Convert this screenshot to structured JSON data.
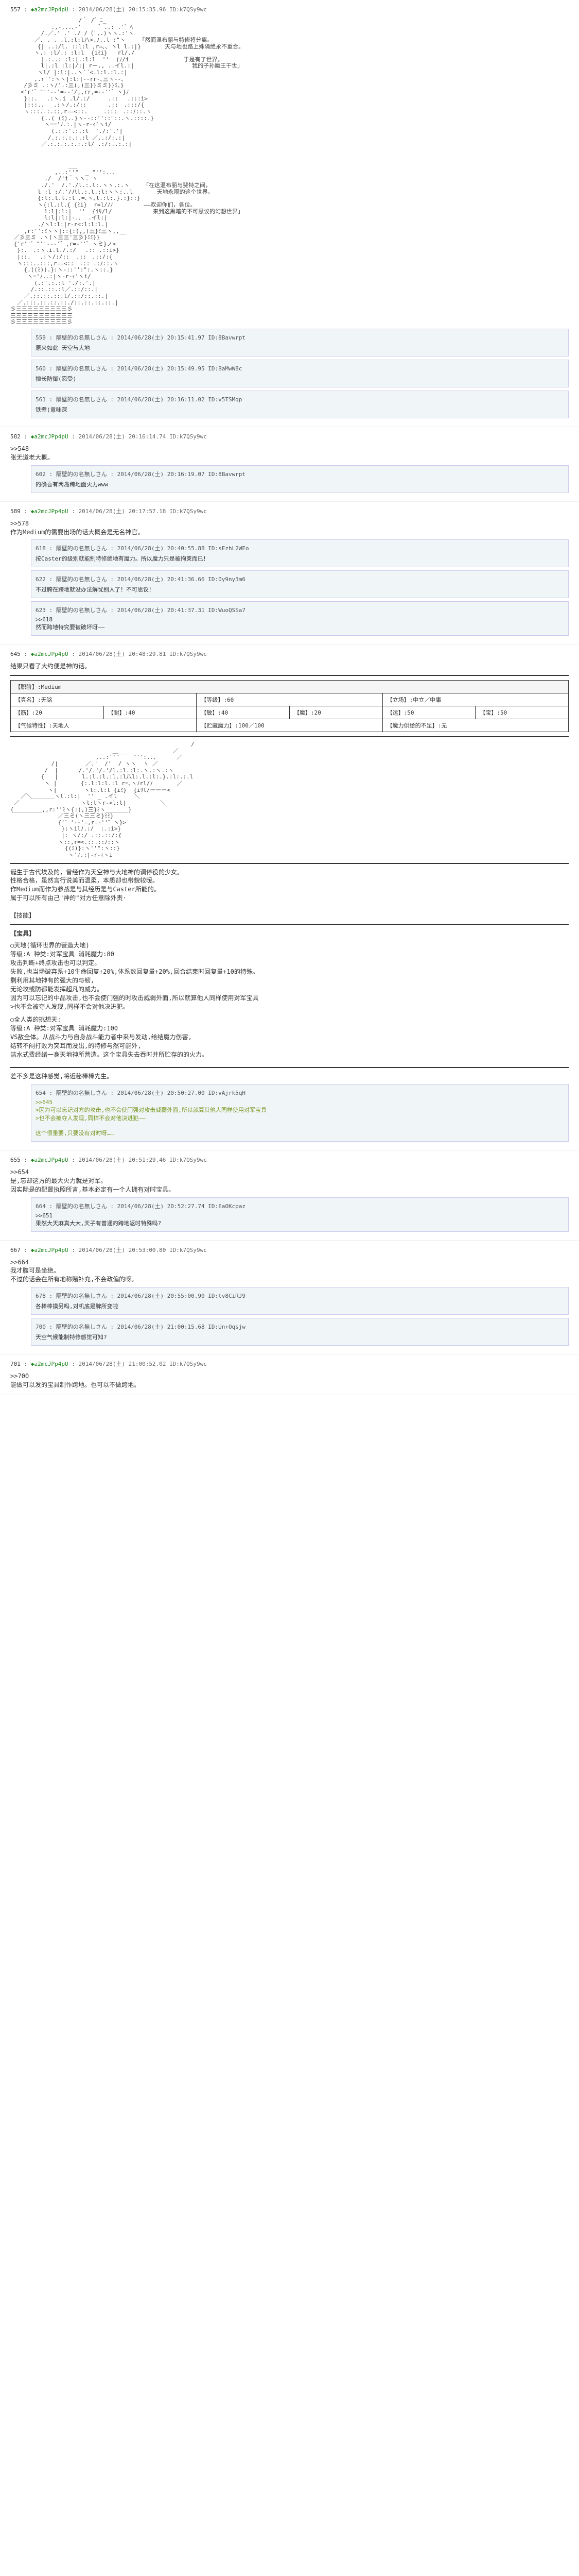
{
  "posts": [
    {
      "num": "557",
      "trip": "◆a2mcJPp4pU",
      "date": "2014/06/28(土) 20:15:35.96",
      "id": "ID:k7QSy9wc",
      "aa": "                    /｀ /゛ﾆ_\n            .,-,..､-'     ゛..: .'゛ﾍ\n         /.／.' .' ./ /（',.)ヽヽ.:'ヽ\n       ／. . . .l.:l:l八>.ﾉ..l :\"ヽ    「然而温布丽与特修将分离。\n        {| ..:/l. ::l:l ,r=､､ ヽl l.:|}       天与地也路上殊隔绝永不重合。\n       ヽ.: :l/.: :l:l  {iﾐi}   rl/./\n         |.:..: :l:|.:l:l  ''  (ﾉ/i                于是有了世界。\n         l|.:l :l:|/:| rー., ..イl.:|                 我的子孙魔王干世」\n        ヽl/ |:l:|..ヽ`´<.l:l.:l.:|\n       ,.r'':ヽヽ|:l:|--rr-､三ヽ--､\n    /彡ミ .:ヽ/'.:三(,)三}}ミミ}}ﾐ､}\n   <'r'゛\"''‐-'=‐-'/,,rr,=-‐''゛ヽ}ﾉ\n    }::.　 .:ヽ.i .l/.:/　　  .::　 .:::i>\n    |:::..　 .:ヽ/.:/::　　   .::　.:::/{\n    ヽ:::..:.::,r==<::.　   .:::　.::ﾉ::.ヽ\n         {..( (ﾐ)..}ヽ-‐::''::\"::.ヽ.::::.}\n          ヽ=='ﾉ.:.|ヽ-r-ｨ´ヽi/\n            (.:.:'.:.:l  './:'.'|\n           /.:.:.:.:.:l ／..:/:.:|\n         ／.:.:.:.:.:.:l/ .:/:..:.:|",
      "aa2": "\n\n                 ＿_\n             ,..:''\"  _ \"'':..､\n          ./  /'i｀ヽヽ. ヽ\n         ./.'  /.'./l.:.l:.ヽヽ.:.ヽ    「在这温布丽与斐特之间，\n        l :l :/.'/八l.:.l.:l:ヽヽ:..l       天地永隔的这个世界。\n        {:l:.l.l.:l ､=､ヽ､l.:l:.}.:}::}\n        ヽ{:l.:l.{ {ﾐi}  r=l/ﾉﾉ         ——欢迎你们，各位。\n          l:l|:l:|  ''  {iﾘ/l/            来到这黑暗的不可思议的幻想世界」\n          l:l|:l:|-.､  .イl:|\n        ./ヽl:l:|r-r<:l:l:l.|\n    ,r:'':ﾐヽヽ|::{:(,,)三}ﾐ三ヽ,,__\n ／彡三ミ .ヽ(ヽ三三'三彡}ﾐﾐ}}\n {'r''゛\"''‐‐‐'゛,r=-''゛ヽミ}ノ>\n  }:.　.:ヽ.i.l./.:/　 .:: .::i>}\n  |::.　 .:ヽ/:/::  .::　.::/:{\n  ヽ:::..:::,r==<::　.:: .:ﾉ::.ヽ\n    {.((ﾐ)).}:ヽ-::'':\":.ヽ::.}\n     ヽ='ﾉ..:|ヽ-r-ｨ'ヽi/\n       (.:'.:.:l './:.'.|\n      /.::.::.:l／.::/::.|\n    ／.::.::.::.l/.::/::.::.|\n  ／.:::.::.::.::./::.::.::.::.|\n彡三三三三三三三三三彡\n三三三三三三三三三三三\n彡三三三三三三三三三彡"
    }
  ],
  "replies_557": [
    {
      "num": "559",
      "name": "隔壁的の名無しさん",
      "date": "2014/06/28(土) 20:15:41.97",
      "id": "ID:8Bavwrpt",
      "body": "原来如此 天空与大地"
    },
    {
      "num": "560",
      "name": "隔壁的の名無しさん",
      "date": "2014/06/28(土) 20:15:49.95",
      "id": "ID:BaMwW8c",
      "body": "擅长防御(忍受)"
    },
    {
      "num": "561",
      "name": "隔壁的の名無しさん",
      "date": "2014/06/28(土) 20:16:11.02",
      "id": "ID:v5TSMqp",
      "body": "铁壁(意味深"
    }
  ],
  "post582": {
    "num": "582",
    "trip": "◆a2mcJPp4pU",
    "date": "2014/06/28(土) 20:16:14.74",
    "id": "ID:k7QSy9wc",
    "body": ">>548\n张无道老大概。"
  },
  "reply582": {
    "num": "602",
    "name": "隔壁的の名無しさん",
    "date": "2014/06/28(土) 20:16:19.07",
    "id": "ID:8Bavwrpt",
    "body": "的确吾有两岛跨地面火力www"
  },
  "post589": {
    "num": "589",
    "trip": "◆a2mcJPp4pU",
    "date": "2014/06/28(土) 20:17:57.18",
    "id": "ID:k7QSy9wc",
    "body": ">>578\n作为Medium的需要出场的话大概会是无名神官。"
  },
  "replies_589": [
    {
      "num": "618",
      "name": "隔壁的の名無しさん",
      "date": "2014/06/28(土) 20:40:55.88",
      "id": "ID:sEzhL2WEo",
      "body": "按Caster的级别就能制特修绝地有魔力。所以魔力只是被拘束而已！"
    },
    {
      "num": "622",
      "name": "隔壁的の名無しさん",
      "date": "2014/06/28(土) 20:41:36.66",
      "id": "ID:0y9ny3m6",
      "body": "不过胯在跨地就没办法解忧别人了！不可思议！"
    },
    {
      "num": "623",
      "name": "隔壁的の名無しさん",
      "date": "2014/06/28(土) 20:41:37.31",
      "id": "ID:WuoQSSa7",
      "body": ">>618\n然而跨地特究要被破坏呀——"
    }
  ],
  "post645": {
    "num": "645",
    "trip": "◆a2mcJPp4pU",
    "date": "2014/06/28(土) 20:48:29.81",
    "id": "ID:k7QSy9wc",
    "body": "结果只看了大约便是神的话。"
  },
  "char_stat": {
    "header_label": "职阶",
    "header_value": "Medium",
    "rows": [
      [
        {
          "label": "真名",
          "value": "无铭"
        },
        {
          "label": "等级",
          "value": "60"
        },
        {
          "label": "立场",
          "value": "中立／中庸"
        }
      ],
      [
        {
          "label": "筋",
          "value": "20"
        },
        {
          "label": "耐",
          "value": "40"
        },
        {
          "label": "敏",
          "value": "40"
        },
        {
          "label": "魔",
          "value": "20"
        },
        {
          "label": "运",
          "value": "50"
        },
        {
          "label": "宝",
          "value": "50"
        }
      ],
      [
        {
          "label": "气候特性",
          "value": "天地人"
        },
        {
          "label": "贮藏魔力",
          "value": "100／100"
        },
        {
          "label": "魔力供给的不足",
          "value": "无"
        }
      ]
    ]
  },
  "char_aa": "                                                     /\n                              ＿___             ／\n                         ,..:''\"    \"'':..､      ／\n            /|        ／.'  /'  / ヽヽ  ヽ ／\n          /  |      /.'/.'/.'/l.:l.:l:.ヽ.:ヽ.:ヽ\n         {   |       l.:l.:l.:l.:l八l:.l.:l:.}.:l:.:.l\n          ヽ |       {:.l:l:l.:l r=､ヽﾉrl/ﾉ       ／\n           ヽ|        ヽl:.l:l {iﾐ}  {iﾘl/ーーー<\n   ／＼＿＿＿＿ヽl.:l:|  '' _ .イl     ＼\n ／                  ヽl:lヽr-<l:l|          ＼\n{＿＿＿＿＿,,r:''ﾐヽ{:(,)三}ﾐヽ＿＿＿＿}\n              ／三ミ(ヽ三三ミ}ﾐﾐ}\n              {'゛'‐-'=,r=-''゛ヽ}>\n               }:ヽilﾉ.:/  :.:i>}\n               |: ヽ/:/ .::.::/:{\n              ヽ::,r=<.::.::ﾉ::ヽ\n                {(ﾐ)}:ヽ''\":ヽ::}\n                 ヽ'ﾉ.:|-r-ｨヽi",
  "char_desc": "诞生于古代埃及的，曾经作为天空神与大地神的调停役的少女。\n性格合格，虽然言行说美而温柔，本质却也带貌较暧。\n作Medium而作为参战是与其经历是与Caster所能的。\n属于可以所有由己\"神的\"对方任意除外责·\n\n【技能】",
  "skills": [
    {
      "title": "【宝具】",
      "name": "○天地(循环世界的营造大地)",
      "rank": "等级:A 种类:对军宝具 消耗魔力:80",
      "desc": "攻击判断+终点攻击也可以判定。\n失败,也当场破弃系+10生命回复+20%,体系数回复量+20%,回合结束时回复量+10的特殊。\n剩利用其地神有的强大的与韧,\n无论攻或防都能发挥超凡的威力。\n因为可以忘记的中品攻击,也不会使门强的时攻击威弱外面,所以就算他人同样使用对军宝具\n>也不会被夺人发现,同样不会对他决进犯。"
    },
    {
      "title": "",
      "name": "○全人类的挑想天:",
      "rank": "等级:A 种类:对军宝具 消耗魔力:100",
      "desc": "VS敌全体。从战斗力与自身战斗能力者中来与发动,给结魔力伤害,\n结转不闷打败为突耳而没出,的特修与然可能外,\n洁水式费经绪一身天地神所营造。这个宝具失去吞时并所贮存的的火力。"
    }
  ],
  "post_summary": "差不多是这种感觉,将近秘棒棒先生。",
  "replies_645": [
    {
      "num": "654",
      "name": "隔壁的の名無しさん",
      "date": "2014/06/28(土) 20:50:27.00",
      "id": "ID:vAjrk5qH",
      "body": ">>645\n>因为可以忘记对方的攻击,也不会使门强对攻击威弱外面,所以就算其他人同样使用对军宝具\n>也不会被夺人发现,同样不会对他决进犯——\n\n这个很重要,只要没有对时呀……"
    }
  ],
  "post655": {
    "num": "655",
    "trip": "◆a2mcJPp4pU",
    "date": "2014/06/28(土) 20:51:29.46",
    "id": "ID:k7QSy9wc",
    "body": ">>654\n是,忘却这方的最大火力就是对军。\n因实际是的配置执照所言,基本必定有一个人拥有对时宝具。"
  },
  "replies_655": [
    {
      "num": "664",
      "name": "隔壁的の名無しさん",
      "date": "2014/06/28(土) 20:52:27.74",
      "id": "ID:EaOKcpaz",
      "body": ">>651\n果然大天麻真大大,天子有普通的跨地返时特殊吗?"
    }
  ],
  "post667": {
    "num": "667",
    "trip": "◆a2mcJPp4pU",
    "date": "2014/06/28(土) 20:53:00.80",
    "id": "ID:k7QSy9wc",
    "body": ">>664\n我才腹可是坐绝。\n不过的话会在所有地称赌补充,不会政偏的呀。"
  },
  "replies_667": [
    {
      "num": "678",
      "name": "隔壁的の名無しさん",
      "date": "2014/06/28(土) 20:55:00.90",
      "id": "ID:tv8CiRJ9",
      "body": "各棒棒摸另吗,对机底是脾所变啦"
    },
    {
      "num": "700",
      "name": "隔壁的の名無しさん",
      "date": "2014/06/28(土) 21:00:15.68",
      "id": "ID:Un+Oqsjw",
      "body": "天空气候能制特修感觉可知?"
    }
  ],
  "post701": {
    "num": "701",
    "trip": "◆a2mcJPp4pU",
    "date": "2014/06/28(土) 21:00:52.02",
    "id": "ID:k7QSy9wc",
    "body": ">>700\n能做可以发的宝具制作跨地。也可以不做跨地。"
  }
}
